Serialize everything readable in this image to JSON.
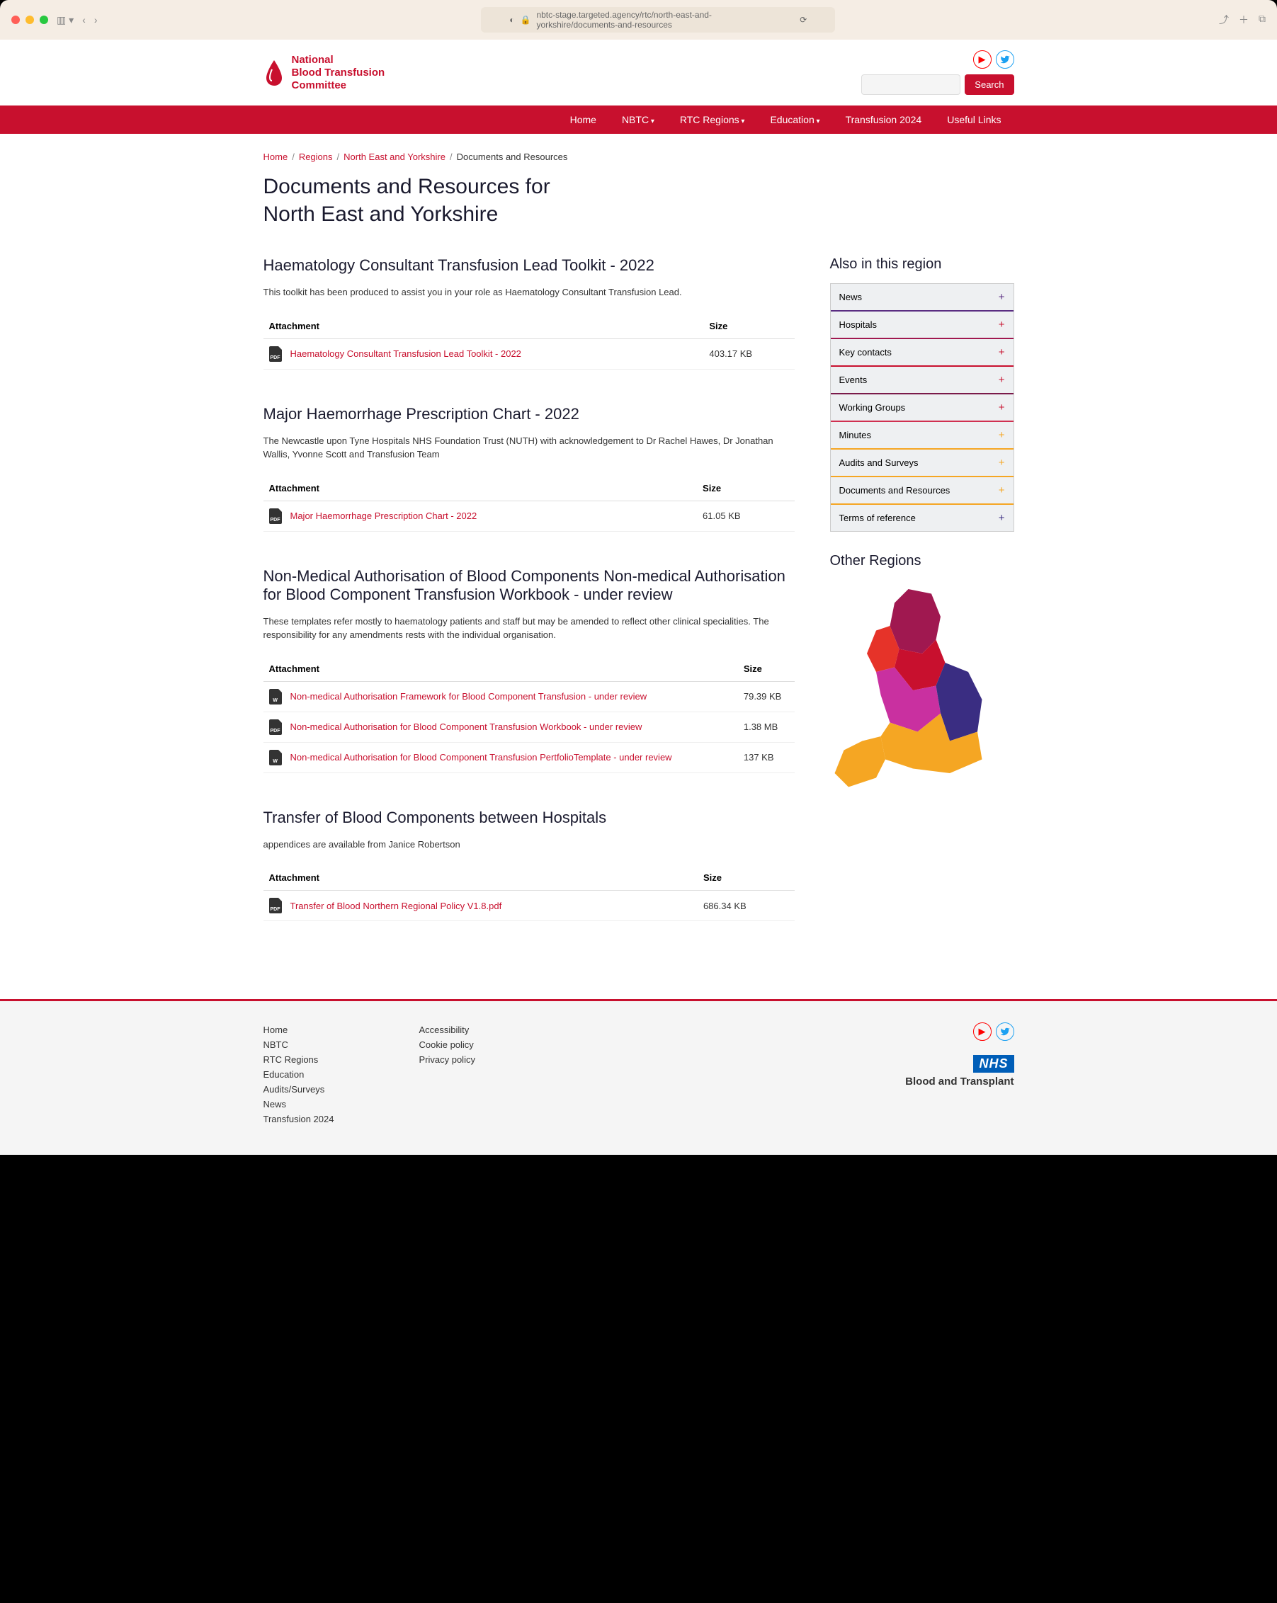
{
  "browser": {
    "url": "nbtc-stage.targeted.agency/rtc/north-east-and-yorkshire/documents-and-resources"
  },
  "logo": {
    "line1": "National",
    "line2": "Blood Transfusion",
    "line3": "Committee"
  },
  "search": {
    "button": "Search"
  },
  "nav": {
    "items": [
      "Home",
      "NBTC",
      "RTC Regions",
      "Education",
      "Transfusion 2024",
      "Useful Links"
    ]
  },
  "breadcrumb": {
    "items": [
      "Home",
      "Regions",
      "North East and Yorkshire"
    ],
    "current": "Documents and Resources"
  },
  "pageTitle": {
    "line1": "Documents and Resources for",
    "line2": "North East and Yorkshire"
  },
  "tableHeaders": {
    "attachment": "Attachment",
    "size": "Size"
  },
  "sections": [
    {
      "title": "Haematology Consultant Transfusion Lead Toolkit - 2022",
      "desc": "This toolkit has been produced to assist you in your role as Haematology Consultant Transfusion Lead.",
      "files": [
        {
          "name": "Haematology Consultant Transfusion Lead Toolkit - 2022",
          "type": "PDF",
          "size": "403.17 KB"
        }
      ]
    },
    {
      "title": "Major Haemorrhage Prescription Chart - 2022",
      "desc": "The Newcastle upon Tyne Hospitals NHS Foundation Trust (NUTH) with acknowledgement to Dr Rachel Hawes, Dr Jonathan Wallis, Yvonne Scott and Transfusion Team",
      "files": [
        {
          "name": "Major Haemorrhage Prescription Chart - 2022",
          "type": "PDF",
          "size": "61.05 KB"
        }
      ]
    },
    {
      "title": "Non-Medical Authorisation of Blood Components Non-medical Authorisation for Blood Component Transfusion Workbook - under review",
      "desc": "These templates refer mostly to haematology patients and staff but may be amended to reflect other clinical specialities. The responsibility for any amendments rests with the individual organisation.",
      "files": [
        {
          "name": "Non-medical Authorisation Framework for Blood Component Transfusion - under review",
          "type": "W",
          "size": "79.39 KB"
        },
        {
          "name": "Non-medical Authorisation for Blood Component Transfusion Workbook - under review",
          "type": "PDF",
          "size": "1.38 MB"
        },
        {
          "name": "Non-medical Authorisation for Blood Component Transfusion PertfolioTemplate - under review",
          "type": "W",
          "size": "137 KB"
        }
      ]
    },
    {
      "title": "Transfer of Blood Components between Hospitals",
      "desc": "appendices are available from Janice Robertson",
      "files": [
        {
          "name": "Transfer of Blood Northern Regional Policy V1.8.pdf",
          "type": "PDF",
          "size": "686.34 KB"
        }
      ]
    }
  ],
  "sidebar": {
    "title": "Also in this region",
    "items": [
      {
        "label": "News",
        "plus": "plus-purple",
        "border": "border-b-1"
      },
      {
        "label": "Hospitals",
        "plus": "plus-red",
        "border": "border-b-2"
      },
      {
        "label": "Key contacts",
        "plus": "plus-red",
        "border": "border-b-3"
      },
      {
        "label": "Events",
        "plus": "plus-red",
        "border": "border-b-4"
      },
      {
        "label": "Working Groups",
        "plus": "plus-red",
        "border": "border-b-5"
      },
      {
        "label": "Minutes",
        "plus": "plus-muted",
        "border": "border-b-6"
      },
      {
        "label": "Audits and Surveys",
        "plus": "plus-muted",
        "border": "border-b-7"
      },
      {
        "label": "Documents and Resources",
        "plus": "plus-muted",
        "border": "border-b-8"
      },
      {
        "label": "Terms of reference",
        "plus": "plus-dark",
        "border": "border-b-9"
      }
    ],
    "otherRegions": "Other Regions"
  },
  "map": {
    "colors": {
      "northwest": "#a01850",
      "northwest_red": "#e63329",
      "yorkshire": "#c8102e",
      "midlands": "#c930a0",
      "east": "#3a2d82",
      "south": "#f5a623",
      "southwest": "#f5a623"
    }
  },
  "footer": {
    "col1": [
      "Home",
      "NBTC",
      "RTC Regions",
      "Education",
      "Audits/Surveys",
      "News",
      "Transfusion 2024"
    ],
    "col2": [
      "Accessibility",
      "Cookie policy",
      "Privacy policy"
    ],
    "nhs": "NHS",
    "tagline": "Blood and Transplant"
  }
}
